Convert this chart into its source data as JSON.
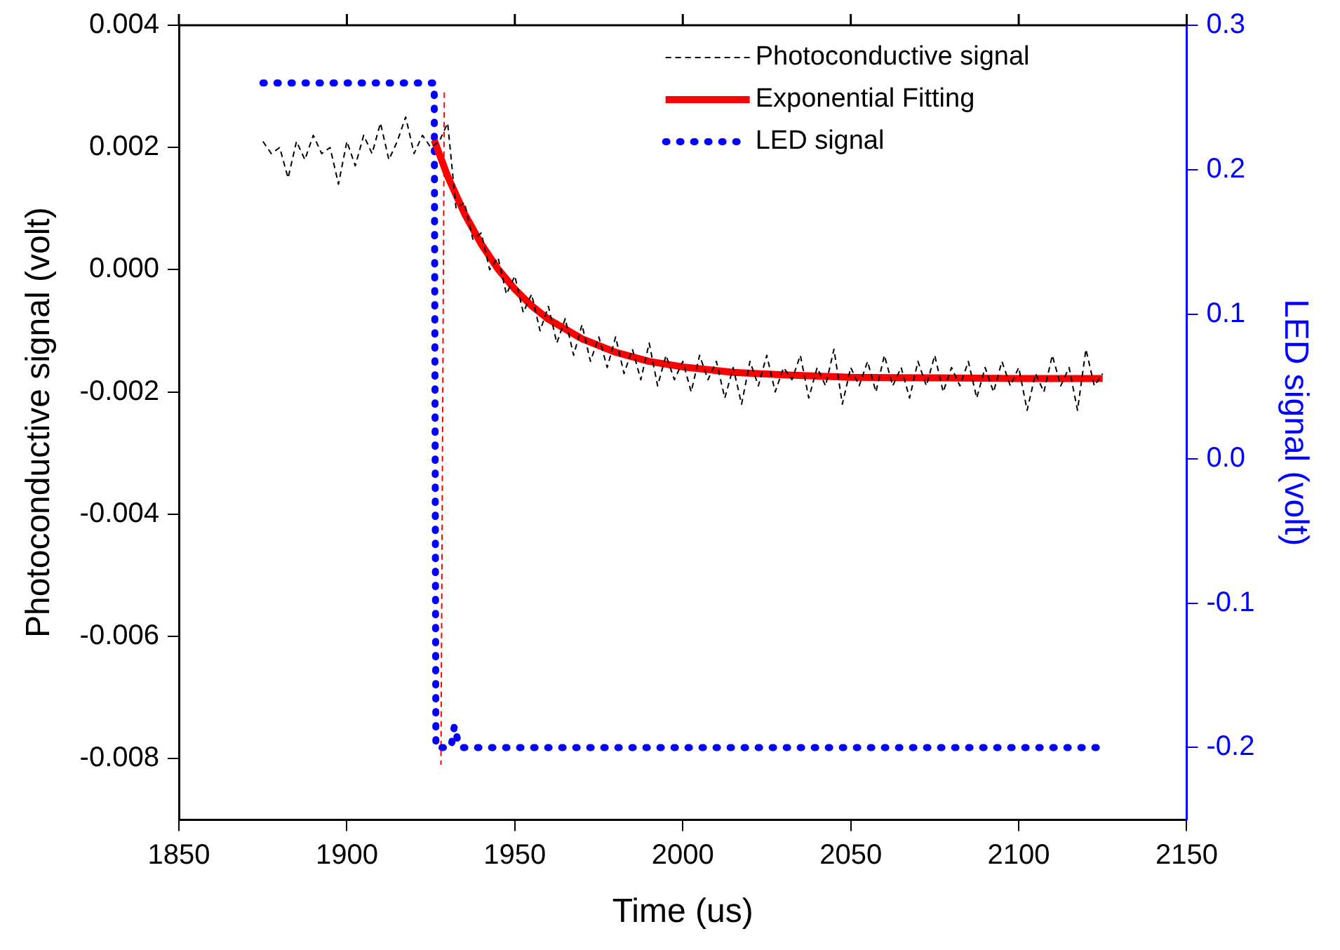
{
  "chart_data": {
    "type": "line",
    "xlabel": "Time (us)",
    "ylabel": "Photoconductive signal (volt)",
    "y2label": "LED signal (volt)",
    "xlim": [
      1850,
      2150
    ],
    "xticks": [
      1850,
      1900,
      1950,
      2000,
      2050,
      2100,
      2150
    ],
    "ylim": [
      -0.009,
      0.004
    ],
    "yticks": [
      {
        "value": -0.008,
        "label": "-0.008"
      },
      {
        "value": -0.006,
        "label": "-0.006"
      },
      {
        "value": -0.004,
        "label": "-0.004"
      },
      {
        "value": -0.002,
        "label": "-0.002"
      },
      {
        "value": 0,
        "label": "0.000"
      },
      {
        "value": 0.002,
        "label": "0.002"
      },
      {
        "value": 0.004,
        "label": "0.004"
      }
    ],
    "y2lim": [
      -0.25,
      0.3
    ],
    "y2ticks": [
      -0.2,
      {
        "value": -0.1,
        "label": "-0.1"
      },
      {
        "value": 0,
        "label": "0.0"
      },
      0.1,
      0.2,
      0.3
    ],
    "grid": false,
    "legend": "top right",
    "marker": "none",
    "series": [
      {
        "name": "Photoconductive signal",
        "color": "#000000",
        "line_style": "dashed",
        "x": [
          1875,
          1877.5,
          1880,
          1882.5,
          1885,
          1887.5,
          1890,
          1892.5,
          1895,
          1897.5,
          1900,
          1902.5,
          1905,
          1907.5,
          1910,
          1912.5,
          1915,
          1917.5,
          1920,
          1922.5,
          1925,
          1927.5,
          1930,
          1932.5,
          1935,
          1937.5,
          1940,
          1942.5,
          1945,
          1947.5,
          1950,
          1952.5,
          1955,
          1957.5,
          1960,
          1962.5,
          1965,
          1967.5,
          1970,
          1972.5,
          1975,
          1977.5,
          1980,
          1982.5,
          1985,
          1987.5,
          1990,
          1992.5,
          1995,
          1997.5,
          2000,
          2002.5,
          2005,
          2007.5,
          2010,
          2012.5,
          2015,
          2017.5,
          2020,
          2022.5,
          2025,
          2027.5,
          2030,
          2032.5,
          2035,
          2037.5,
          2040,
          2042.5,
          2045,
          2047.5,
          2050,
          2052.5,
          2055,
          2057.5,
          2060,
          2062.5,
          2065,
          2067.5,
          2070,
          2072.5,
          2075,
          2077.5,
          2080,
          2082.5,
          2085,
          2087.5,
          2090,
          2092.5,
          2095,
          2097.5,
          2100,
          2102.5,
          2105,
          2107.5,
          2110,
          2112.5,
          2115,
          2117.5,
          2120,
          2122.5,
          2125
        ],
        "values": [
          0.0021,
          0.0019,
          0.002,
          0.0015,
          0.0021,
          0.0018,
          0.0022,
          0.0019,
          0.002,
          0.0014,
          0.0021,
          0.0017,
          0.0022,
          0.0019,
          0.0024,
          0.0018,
          0.0021,
          0.0025,
          0.0019,
          0.0022,
          0.002,
          0.0021,
          0.0024,
          0.001,
          0.0011,
          0.0005,
          0.0006,
          0.0,
          0.0002,
          -0.0004,
          -0.0001,
          -0.0007,
          -0.0004,
          -0.001,
          -0.0006,
          -0.0012,
          -0.0008,
          -0.0014,
          -0.0009,
          -0.0015,
          -0.0011,
          -0.0016,
          -0.0011,
          -0.0017,
          -0.0013,
          -0.0018,
          -0.0012,
          -0.0019,
          -0.0014,
          -0.0018,
          -0.0015,
          -0.002,
          -0.0014,
          -0.0018,
          -0.0015,
          -0.0021,
          -0.0016,
          -0.0022,
          -0.0015,
          -0.0019,
          -0.0014,
          -0.002,
          -0.0016,
          -0.0018,
          -0.0014,
          -0.0021,
          -0.0016,
          -0.0019,
          -0.0013,
          -0.0022,
          -0.0016,
          -0.0019,
          -0.0015,
          -0.002,
          -0.0014,
          -0.0019,
          -0.0016,
          -0.0021,
          -0.0015,
          -0.0019,
          -0.0014,
          -0.002,
          -0.0016,
          -0.0019,
          -0.0015,
          -0.0021,
          -0.0016,
          -0.002,
          -0.0015,
          -0.0019,
          -0.0016,
          -0.0023,
          -0.0017,
          -0.002,
          -0.0014,
          -0.0019,
          -0.0016,
          -0.0023,
          -0.0013,
          -0.0019,
          -0.0017
        ]
      },
      {
        "name": "Exponential Fitting",
        "color": "#ff0000",
        "line_style": "solid",
        "x": [
          1926,
          1930,
          1935,
          1940,
          1945,
          1950,
          1955,
          1960,
          1970,
          1980,
          1990,
          2000,
          2015,
          2030,
          2050,
          2075,
          2100,
          2125
        ],
        "values": [
          0.00212,
          0.00153,
          0.00092,
          0.00042,
          1e-05,
          -0.00032,
          -0.00059,
          -0.00081,
          -0.00113,
          -0.00135,
          -0.0015,
          -0.00159,
          -0.00168,
          -0.00172,
          -0.00176,
          -0.00177,
          -0.00178,
          -0.00178
        ]
      },
      {
        "name": "LED signal",
        "color": "#0000ff",
        "line_style": "dotted",
        "axis": "y2",
        "x": [
          1875,
          1926,
          1926.5,
          1931,
          1932,
          1933,
          1934,
          2125
        ],
        "values": [
          0.26,
          0.26,
          -0.2,
          -0.2,
          -0.185,
          -0.195,
          -0.2,
          -0.2
        ]
      },
      {
        "color": "#ff0000",
        "line_style": "dashed",
        "x": [
          1929,
          1928
        ],
        "values": [
          0.0029,
          -0.0081
        ]
      }
    ]
  }
}
